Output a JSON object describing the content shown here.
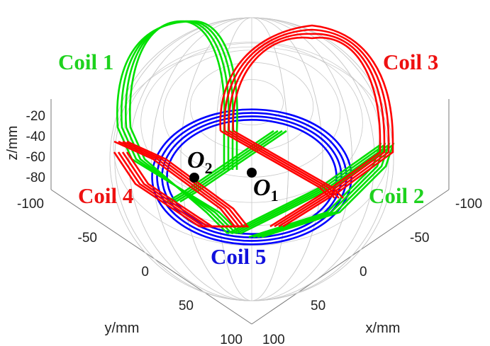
{
  "colors": {
    "coil_1": "#00e000",
    "coil_2": "#00e000",
    "coil_3": "#ff0000",
    "coil_4": "#ff0000",
    "coil_5": "#0000ff",
    "sphere": "#c8c8c8",
    "box": "#555555"
  },
  "coils": [
    {
      "label": "Coil 1",
      "color": "#1ed21e"
    },
    {
      "label": "Coil 2",
      "color": "#1ed21e"
    },
    {
      "label": "Coil 3",
      "color": "#ee1111"
    },
    {
      "label": "Coil 4",
      "color": "#ee1111"
    },
    {
      "label": "Coil 5",
      "color": "#1111dd"
    }
  ],
  "points": [
    {
      "main": "O",
      "sub": "1"
    },
    {
      "main": "O",
      "sub": "2"
    }
  ],
  "axes": {
    "z_label": "z/mm",
    "y_label": "y/mm",
    "x_label": "x/mm",
    "z_ticks": [
      "-20",
      "-40",
      "-60",
      "-80"
    ],
    "y_ticks": [
      "-100",
      "-50",
      "0",
      "50",
      "100"
    ],
    "x_ticks": [
      "-100",
      "-50",
      "0",
      "50",
      "100"
    ]
  }
}
